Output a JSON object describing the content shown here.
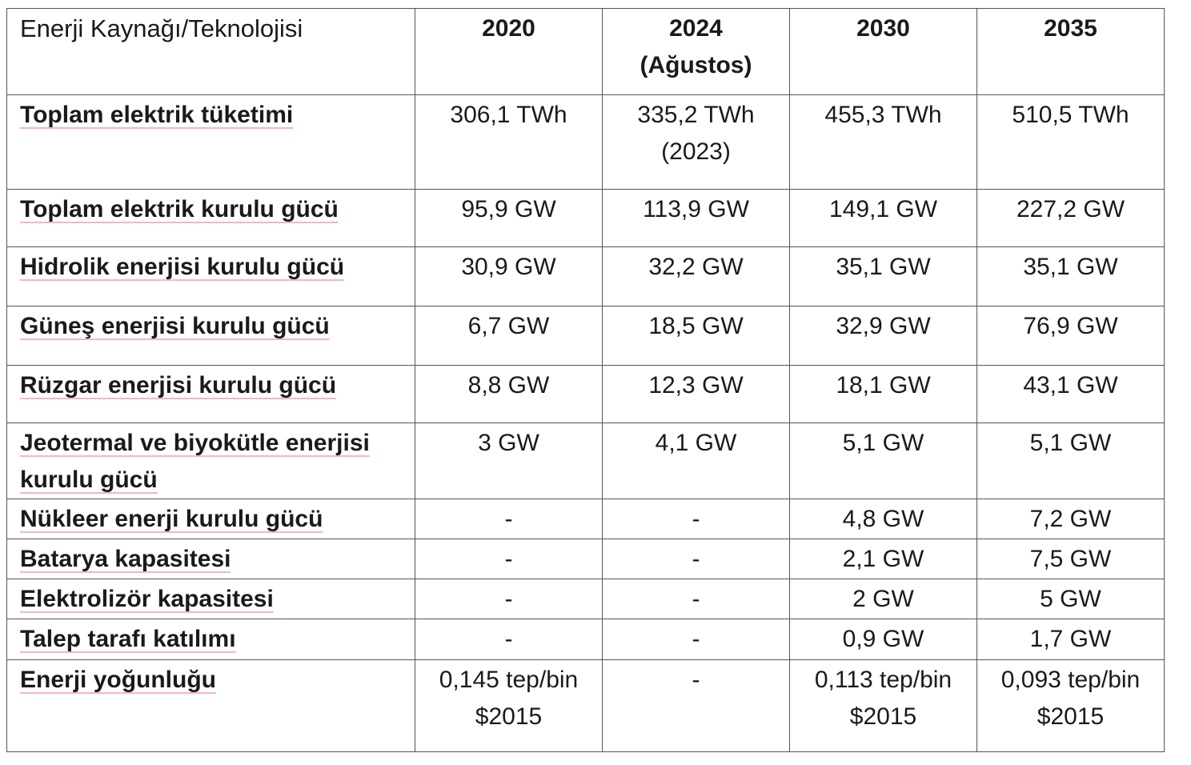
{
  "table": {
    "header": {
      "label": "Enerji Kaynağı/Teknolojisi",
      "years": [
        {
          "main": "2020",
          "sub": ""
        },
        {
          "main": "2024",
          "sub": "(Ağustos)"
        },
        {
          "main": "2030",
          "sub": ""
        },
        {
          "main": "2035",
          "sub": ""
        }
      ]
    },
    "rows": [
      {
        "label": "Toplam elektrik tüketimi",
        "values": [
          {
            "l1": "306,1 TWh",
            "l2": ""
          },
          {
            "l1": "335,2 TWh",
            "l2": "(2023)"
          },
          {
            "l1": "455,3 TWh",
            "l2": ""
          },
          {
            "l1": "510,5 TWh",
            "l2": ""
          }
        ]
      },
      {
        "label": "Toplam elektrik kurulu gücü",
        "values": [
          {
            "l1": "95,9 GW",
            "l2": ""
          },
          {
            "l1": "113,9 GW",
            "l2": ""
          },
          {
            "l1": "149,1 GW",
            "l2": ""
          },
          {
            "l1": "227,2 GW",
            "l2": ""
          }
        ]
      },
      {
        "label": "Hidrolik enerjisi kurulu gücü",
        "values": [
          {
            "l1": "30,9 GW",
            "l2": ""
          },
          {
            "l1": "32,2 GW",
            "l2": ""
          },
          {
            "l1": "35,1 GW",
            "l2": ""
          },
          {
            "l1": "35,1 GW",
            "l2": ""
          }
        ]
      },
      {
        "label": "Güneş enerjisi kurulu gücü",
        "values": [
          {
            "l1": "6,7 GW",
            "l2": ""
          },
          {
            "l1": "18,5 GW",
            "l2": ""
          },
          {
            "l1": "32,9 GW",
            "l2": ""
          },
          {
            "l1": "76,9 GW",
            "l2": ""
          }
        ]
      },
      {
        "label": "Rüzgar enerjisi kurulu gücü",
        "values": [
          {
            "l1": "8,8 GW",
            "l2": ""
          },
          {
            "l1": "12,3 GW",
            "l2": ""
          },
          {
            "l1": "18,1 GW",
            "l2": ""
          },
          {
            "l1": "43,1 GW",
            "l2": ""
          }
        ]
      },
      {
        "label": "Jeotermal ve biyokütle enerjisi kurulu gücü",
        "values": [
          {
            "l1": "3 GW",
            "l2": ""
          },
          {
            "l1": "4,1 GW",
            "l2": ""
          },
          {
            "l1": "5,1 GW",
            "l2": ""
          },
          {
            "l1": "5,1 GW",
            "l2": ""
          }
        ]
      },
      {
        "label": "Nükleer enerji kurulu gücü",
        "values": [
          {
            "l1": "-",
            "l2": ""
          },
          {
            "l1": "-",
            "l2": ""
          },
          {
            "l1": "4,8 GW",
            "l2": ""
          },
          {
            "l1": "7,2 GW",
            "l2": ""
          }
        ]
      },
      {
        "label": "Batarya kapasitesi",
        "values": [
          {
            "l1": "-",
            "l2": ""
          },
          {
            "l1": "-",
            "l2": ""
          },
          {
            "l1": "2,1 GW",
            "l2": ""
          },
          {
            "l1": "7,5 GW",
            "l2": ""
          }
        ]
      },
      {
        "label": "Elektrolizör kapasitesi",
        "values": [
          {
            "l1": "-",
            "l2": ""
          },
          {
            "l1": "-",
            "l2": ""
          },
          {
            "l1": "2 GW",
            "l2": ""
          },
          {
            "l1": "5 GW",
            "l2": ""
          }
        ]
      },
      {
        "label": "Talep tarafı katılımı",
        "values": [
          {
            "l1": "-",
            "l2": ""
          },
          {
            "l1": "-",
            "l2": ""
          },
          {
            "l1": "0,9 GW",
            "l2": ""
          },
          {
            "l1": "1,7 GW",
            "l2": ""
          }
        ]
      },
      {
        "label": "Enerji yoğunluğu",
        "values": [
          {
            "l1": "0,145 tep/bin",
            "l2": "$2015"
          },
          {
            "l1": "-",
            "l2": ""
          },
          {
            "l1": "0,113 tep/bin",
            "l2": "$2015"
          },
          {
            "l1": "0,093 tep/bin",
            "l2": "$2015"
          }
        ]
      }
    ]
  }
}
